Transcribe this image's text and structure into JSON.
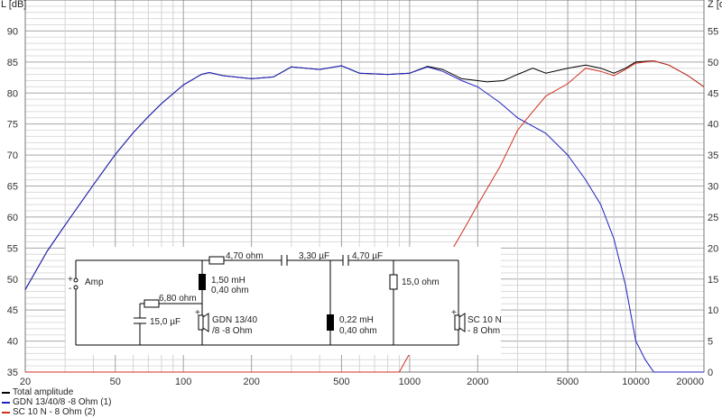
{
  "chart_data": {
    "type": "line",
    "x_scale": "log",
    "xlim": [
      20,
      20000
    ],
    "ylim_left": [
      35,
      95
    ],
    "ylim_right": [
      0,
      60
    ],
    "y_left_label": "L [dB]",
    "y_right_label": "Z [o",
    "x_ticks": [
      "20",
      "50",
      "100",
      "200",
      "500",
      "1000",
      "2000",
      "5000",
      "10000",
      "20000"
    ],
    "y_left_ticks": [
      "35",
      "40",
      "45",
      "50",
      "55",
      "60",
      "65",
      "70",
      "75",
      "80",
      "85",
      "90"
    ],
    "y_right_ticks": [
      "0",
      "5",
      "10",
      "15",
      "20",
      "25",
      "30",
      "35",
      "40",
      "45",
      "50",
      "55"
    ],
    "grid": true,
    "legend_position": "bottom-left",
    "series": [
      {
        "name": "Total amplitude",
        "color": "#000000",
        "points": [
          [
            20,
            48.3
          ],
          [
            25,
            54.5
          ],
          [
            30,
            58.7
          ],
          [
            40,
            65.2
          ],
          [
            50,
            70.1
          ],
          [
            60,
            73.6
          ],
          [
            70,
            76.2
          ],
          [
            80,
            78.3
          ],
          [
            100,
            81.3
          ],
          [
            120,
            83.0
          ],
          [
            130,
            83.3
          ],
          [
            150,
            82.8
          ],
          [
            200,
            82.3
          ],
          [
            250,
            82.6
          ],
          [
            300,
            84.2
          ],
          [
            400,
            83.8
          ],
          [
            500,
            84.4
          ],
          [
            600,
            83.2
          ],
          [
            800,
            83.0
          ],
          [
            1000,
            83.2
          ],
          [
            1200,
            84.3
          ],
          [
            1400,
            83.8
          ],
          [
            1700,
            82.3
          ],
          [
            2000,
            82.0
          ],
          [
            2200,
            81.8
          ],
          [
            2600,
            82.0
          ],
          [
            3000,
            83.0
          ],
          [
            3500,
            84.0
          ],
          [
            4000,
            83.2
          ],
          [
            5000,
            84.0
          ],
          [
            6000,
            84.5
          ],
          [
            7000,
            84.0
          ],
          [
            8000,
            83.2
          ],
          [
            9000,
            84.0
          ],
          [
            10000,
            85.0
          ],
          [
            12000,
            85.2
          ],
          [
            14000,
            84.5
          ],
          [
            17000,
            82.8
          ],
          [
            20000,
            81.0
          ]
        ]
      },
      {
        "name": "GDN 13/40/8 -8 Ohm (1)",
        "color": "#2020c0",
        "points": [
          [
            20,
            48.3
          ],
          [
            25,
            54.5
          ],
          [
            30,
            58.7
          ],
          [
            40,
            65.2
          ],
          [
            50,
            70.1
          ],
          [
            60,
            73.6
          ],
          [
            70,
            76.2
          ],
          [
            80,
            78.3
          ],
          [
            100,
            81.3
          ],
          [
            120,
            83.0
          ],
          [
            130,
            83.3
          ],
          [
            150,
            82.8
          ],
          [
            200,
            82.3
          ],
          [
            250,
            82.6
          ],
          [
            300,
            84.2
          ],
          [
            400,
            83.8
          ],
          [
            500,
            84.4
          ],
          [
            600,
            83.2
          ],
          [
            800,
            83.0
          ],
          [
            1000,
            83.2
          ],
          [
            1200,
            84.2
          ],
          [
            1400,
            83.5
          ],
          [
            1700,
            82.0
          ],
          [
            2000,
            81.0
          ],
          [
            2500,
            78.5
          ],
          [
            3000,
            76.0
          ],
          [
            4000,
            73.5
          ],
          [
            5000,
            70.0
          ],
          [
            6000,
            66.0
          ],
          [
            7000,
            62.0
          ],
          [
            8000,
            56.5
          ],
          [
            9000,
            49.0
          ],
          [
            10000,
            40.0
          ],
          [
            11000,
            37.0
          ],
          [
            12000,
            35.0
          ],
          [
            20000,
            35.0
          ]
        ]
      },
      {
        "name": "SC 10 N - 8 Ohm (2)",
        "color": "#d03020",
        "points": [
          [
            20,
            35.0
          ],
          [
            900,
            35.0
          ],
          [
            1000,
            38.0
          ],
          [
            1200,
            46.0
          ],
          [
            1500,
            54.0
          ],
          [
            1800,
            59.0
          ],
          [
            2000,
            62.0
          ],
          [
            2500,
            68.0
          ],
          [
            3000,
            74.0
          ],
          [
            3500,
            77.0
          ],
          [
            4000,
            79.5
          ],
          [
            5000,
            81.5
          ],
          [
            6000,
            84.0
          ],
          [
            7000,
            83.5
          ],
          [
            8000,
            82.8
          ],
          [
            9000,
            83.8
          ],
          [
            10000,
            84.8
          ],
          [
            12000,
            85.2
          ],
          [
            14000,
            84.5
          ],
          [
            17000,
            82.8
          ],
          [
            20000,
            81.0
          ]
        ]
      }
    ]
  },
  "schematic": {
    "amp_label": "Amp",
    "plus": "+",
    "minus": "-",
    "r_series_tweeter": "4,70 ohm",
    "c1": "3,30 µF",
    "c2": "4,70 µF",
    "r_tweeter_shunt": "15,0 ohm",
    "l1_value": "1,50 mH",
    "l1_resistance": "0,40 ohm",
    "r_zobel": "6,80 ohm",
    "c_zobel": "15,0 µF",
    "woofer_name": "GDN 13/40",
    "woofer_imp": "/8 -8 Ohm",
    "l2_value": "0,22 mH",
    "l2_resistance": "0,40 ohm",
    "tweeter_name": "SC 10 N",
    "tweeter_imp": "- 8 Ohm"
  }
}
